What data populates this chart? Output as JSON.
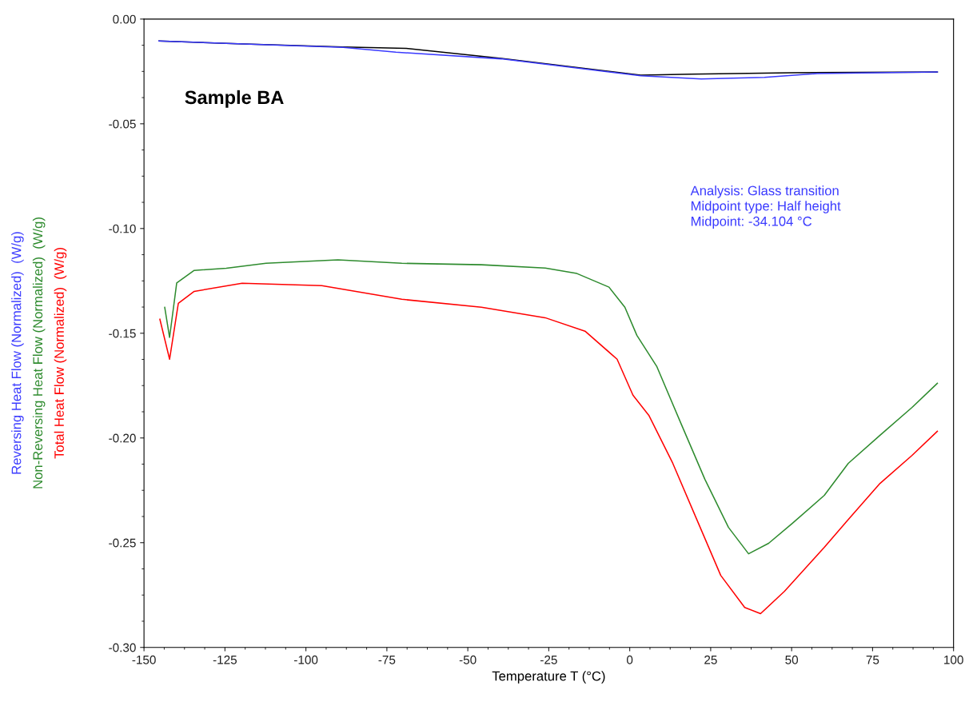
{
  "chart_data": {
    "type": "line",
    "xlabel": "Temperature T (°C)",
    "xlim": [
      -150,
      100
    ],
    "xticks": [
      -150,
      -125,
      -100,
      -75,
      -50,
      -25,
      0,
      25,
      50,
      75,
      100
    ],
    "ylim": [
      -0.3,
      0.0
    ],
    "yticks": [
      {
        "value": -0.3,
        "label": "-0.30"
      },
      {
        "value": -0.25,
        "label": "-0.25"
      },
      {
        "value": -0.2,
        "label": "-0.20"
      },
      {
        "value": -0.15,
        "label": "-0.15"
      },
      {
        "value": -0.1,
        "label": "-0.10"
      },
      {
        "value": -0.05,
        "label": "-0.05"
      },
      {
        "value": 0.0,
        "label": "0.00"
      }
    ],
    "grid": false,
    "legend": false,
    "marker": "none",
    "line_style": "solid",
    "series": [
      {
        "color": "#000000",
        "x": [
          -145.4,
          -121,
          -88.5,
          -69,
          -39.7,
          3.4,
          18.9,
          49.8,
          95
        ],
        "values": [
          -0.0105,
          -0.0118,
          -0.0133,
          -0.014,
          -0.0188,
          -0.0268,
          -0.0263,
          -0.0256,
          -0.0253
        ]
      },
      {
        "name": "Reversing Heat Flow (Normalized)  (W/g)",
        "color": "#3a3aff",
        "x": [
          -145.4,
          -121,
          -88.5,
          -72.2,
          -39.7,
          3.4,
          22.1,
          41.6,
          57.9,
          95
        ],
        "values": [
          -0.0105,
          -0.0118,
          -0.0135,
          -0.0158,
          -0.019,
          -0.0271,
          -0.0286,
          -0.0278,
          -0.026,
          -0.0253
        ]
      },
      {
        "name": "Non-Reversing Heat Flow (Normalized)  (W/g)",
        "color": "#2e8b2e",
        "x": [
          -143.6,
          -142.1,
          -139.9,
          -134.5,
          -124.6,
          -112.3,
          -90.1,
          -70.4,
          -45.8,
          -26.1,
          -16.3,
          -6.4,
          -1.5,
          2.2,
          8.4,
          15.8,
          23.2,
          30.5,
          36.7,
          42.9,
          50.2,
          60.1,
          67.5,
          77.3,
          87.2,
          95
        ],
        "values": [
          -0.1376,
          -0.152,
          -0.126,
          -0.12,
          -0.119,
          -0.1166,
          -0.115,
          -0.1166,
          -0.1173,
          -0.1189,
          -0.1215,
          -0.128,
          -0.1376,
          -0.151,
          -0.166,
          -0.193,
          -0.2197,
          -0.2427,
          -0.2553,
          -0.2503,
          -0.2408,
          -0.2274,
          -0.2121,
          -0.1987,
          -0.1854,
          -0.1739
        ]
      },
      {
        "name": "Total Heat Flow (Normalized)  (W/g)",
        "color": "#ff0000",
        "x": [
          -145.1,
          -142.1,
          -139.4,
          -134.5,
          -119.7,
          -95.1,
          -70.4,
          -45.8,
          -26.1,
          -13.8,
          -3.9,
          1.0,
          5.9,
          13.3,
          20.7,
          28.1,
          35.5,
          40.4,
          47.8,
          60.1,
          67.5,
          77.3,
          87.2,
          95
        ],
        "values": [
          -0.1433,
          -0.1624,
          -0.1357,
          -0.13,
          -0.1261,
          -0.1273,
          -0.1338,
          -0.1376,
          -0.1426,
          -0.149,
          -0.1624,
          -0.1796,
          -0.1892,
          -0.2121,
          -0.2389,
          -0.2656,
          -0.2809,
          -0.2839,
          -0.2732,
          -0.2522,
          -0.2389,
          -0.2217,
          -0.2083,
          -0.1968
        ]
      }
    ],
    "annotations": [
      "Sample BA",
      "Analysis: Glass transition\nMidpoint type: Half height\nMidpoint: -34.104 °C"
    ]
  }
}
